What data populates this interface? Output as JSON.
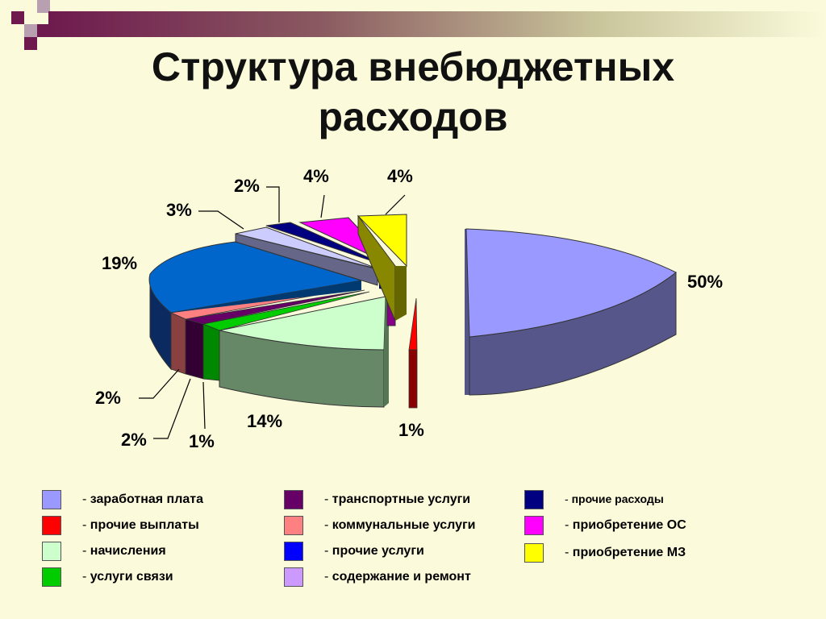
{
  "slide": {
    "title_line1": "Структура внебюджетных",
    "title_line2": "расходов"
  },
  "chart_data": {
    "type": "pie",
    "title": "Структура внебюджетных расходов",
    "slices": [
      {
        "name": "заработная плата",
        "value": 50,
        "label": "50%",
        "color": "#9999ff"
      },
      {
        "name": "прочие выплаты",
        "value": 1,
        "label": "1%",
        "color": "#ff0000"
      },
      {
        "name": "начисления",
        "value": 14,
        "label": "14%",
        "color": "#ccffcc"
      },
      {
        "name": "услуги связи",
        "value": 1,
        "label": "1%",
        "color": "#00cc00"
      },
      {
        "name": "транспортные услуги",
        "value": 2,
        "label": "2%",
        "color": "#660066"
      },
      {
        "name": "коммунальные услуги",
        "value": 2,
        "label": "2%",
        "color": "#ff8080"
      },
      {
        "name": "прочие услуги",
        "value": 19,
        "label": "19%",
        "color": "#0066cc"
      },
      {
        "name": "содержание и ремонт",
        "value": 3,
        "label": "3%",
        "color": "#ccccff"
      },
      {
        "name": "прочие расходы",
        "value": 2,
        "label": "2%",
        "color": "#000080"
      },
      {
        "name": "приобретение ОС",
        "value": 4,
        "label": "4%",
        "color": "#ff00ff"
      },
      {
        "name": "приобретение МЗ",
        "value": 4,
        "label": "4%",
        "color": "#ffff00"
      }
    ],
    "legend_position": "bottom"
  },
  "legend": [
    {
      "dash": "-",
      "label": "заработная плата",
      "color": "#9999ff"
    },
    {
      "dash": "-",
      "label": "прочие выплаты",
      "color": "#ff0000"
    },
    {
      "dash": "-",
      "label": "начисления",
      "color": "#ccffcc"
    },
    {
      "dash": "-",
      "label": "услуги связи",
      "color": "#00cc00"
    },
    {
      "dash": "-",
      "label": "транспортные услуги",
      "color": "#660066"
    },
    {
      "dash": "-",
      "label": "коммунальные услуги",
      "color": "#ff8080"
    },
    {
      "dash": "-",
      "label": "прочие услуги",
      "color": "#0000ff"
    },
    {
      "dash": "-",
      "label": "содержание и ремонт",
      "color": "#cc99ff"
    },
    {
      "dash": "-",
      "label": "прочие расходы",
      "color": "#000080"
    },
    {
      "dash": "-",
      "label": "приобретение ОС",
      "color": "#ff00ff"
    },
    {
      "dash": "-",
      "label": "приобретение МЗ",
      "color": "#ffff00"
    }
  ]
}
